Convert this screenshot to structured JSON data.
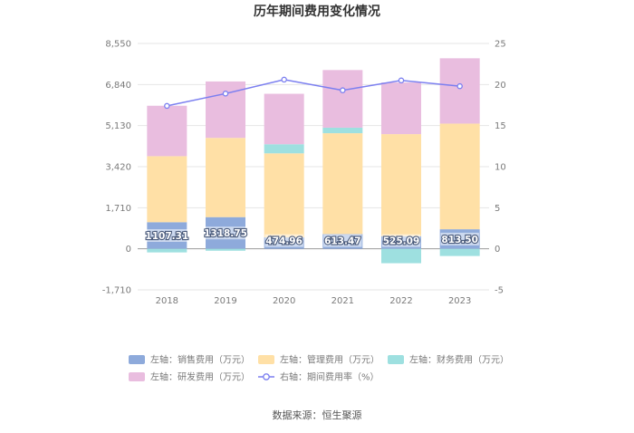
{
  "chart_data": {
    "type": "bar",
    "title": "历年期间费用变化情况",
    "source": "数据来源：恒生聚源",
    "categories": [
      "2018",
      "2019",
      "2020",
      "2021",
      "2022",
      "2023"
    ],
    "left_axis": {
      "ticks": [
        "-1,710",
        "0",
        "1,710",
        "3,420",
        "5,130",
        "6,840",
        "8,550"
      ],
      "ylim": [
        -1710,
        8550
      ]
    },
    "right_axis": {
      "ticks": [
        "-5",
        "0",
        "5",
        "10",
        "15",
        "20",
        "25"
      ],
      "ylim": [
        -5,
        25
      ]
    },
    "series": [
      {
        "name": "左轴：销售费用（万元）",
        "color": "#8eaadb",
        "axis": "left",
        "stack": true,
        "values": [
          1107.31,
          1318.75,
          474.96,
          613.47,
          525.09,
          813.5
        ],
        "labels": [
          "1107.31",
          "1318.75",
          "474.96",
          "613.47",
          "525.09",
          "813.50"
        ]
      },
      {
        "name": "左轴：管理费用（万元）",
        "color": "#ffe0a6",
        "axis": "left",
        "stack": true,
        "values": [
          2750,
          3300,
          3500,
          4200,
          4250,
          4400
        ]
      },
      {
        "name": "左轴：财务费用（万元）",
        "color": "#9ee0e0",
        "axis": "left",
        "stack": true,
        "values": [
          -150,
          -80,
          380,
          230,
          -600,
          -300
        ]
      },
      {
        "name": "左轴：研发费用（万元）",
        "color": "#e9bddf",
        "axis": "left",
        "stack": true,
        "values": [
          2100,
          2350,
          2100,
          2400,
          2150,
          2720
        ]
      },
      {
        "name": "右轴：期间费用率（%）",
        "color": "#7b7ff0",
        "axis": "right",
        "type": "line",
        "values": [
          17.4,
          18.9,
          20.6,
          19.3,
          20.5,
          19.8
        ]
      }
    ]
  }
}
